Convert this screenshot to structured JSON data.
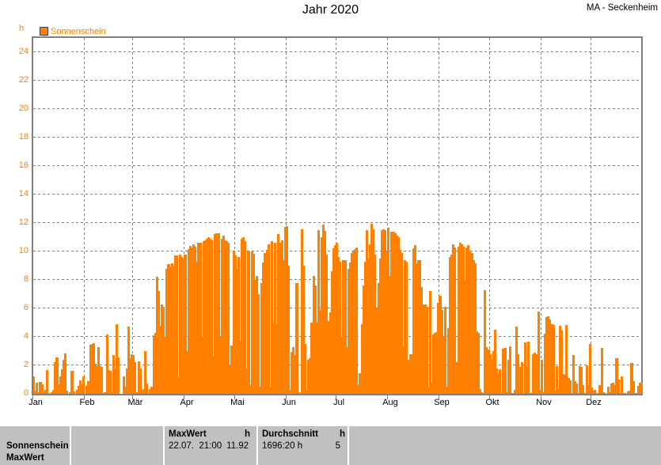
{
  "header": {
    "title": "Jahr 2020",
    "station": "MA - Seckenheim"
  },
  "legend": {
    "unit": "h",
    "series_label": "Sonnenschein"
  },
  "chart_data": {
    "type": "bar",
    "title": "Jahr 2020",
    "ylabel": "h",
    "ylim": [
      0,
      25
    ],
    "yticks": [
      0,
      2,
      4,
      6,
      8,
      10,
      12,
      14,
      16,
      18,
      20,
      22,
      24
    ],
    "x_months": [
      "Jan",
      "Feb",
      "Mär",
      "Apr",
      "Mai",
      "Jun",
      "Jul",
      "Aug",
      "Sep",
      "Okt",
      "Nov",
      "Dez"
    ],
    "month_days": [
      31,
      29,
      31,
      30,
      31,
      30,
      31,
      31,
      30,
      31,
      30,
      31
    ],
    "grid": "dashed",
    "legend_position": "top-left",
    "series": [
      {
        "name": "Sonnenschein",
        "unit": "h",
        "color": "#FF8000",
        "values": [
          1.2,
          0.2,
          0.8,
          0.1,
          0.85,
          0.65,
          0.1,
          0.25,
          1.65,
          0.05,
          0,
          0.1,
          0.3,
          2.2,
          2.55,
          0.65,
          1.2,
          1.7,
          2.4,
          2.85,
          0.2,
          0,
          0.1,
          1.6,
          0.15,
          0,
          0.3,
          0.55,
          0.95,
          0.65,
          1.2,
          0,
          0.55,
          0.9,
          3.45,
          3.5,
          3.55,
          2.1,
          1.95,
          3.3,
          1.95,
          1.9,
          0.05,
          0.1,
          4.15,
          1.65,
          1.6,
          0.1,
          2.7,
          1.8,
          4.9,
          2.55,
          0,
          0,
          1.2,
          0.5,
          1.75,
          4.7,
          2.5,
          2.75,
          2.7,
          2.2,
          0.1,
          2.3,
          1.8,
          0.3,
          0.35,
          3.0,
          0.7,
          0.05,
          0.35,
          0.5,
          4.1,
          4.3,
          8.2,
          7.2,
          4.8,
          6.3,
          6.1,
          4.0,
          8.8,
          9.1,
          8.9,
          9.15,
          9.0,
          9.7,
          9.7,
          1.15,
          9.8,
          9.6,
          9.5,
          9.8,
          3.0,
          10.15,
          10.4,
          10.25,
          10.5,
          10.35,
          9.3,
          10.6,
          10.6,
          4.0,
          10.7,
          10.8,
          10.9,
          11.0,
          10.9,
          10.8,
          2.6,
          11.2,
          11.3,
          11.25,
          4.0,
          10.9,
          11.1,
          10.8,
          10.7,
          10.6,
          2.0,
          3.4,
          10.0,
          9.7,
          8.8,
          9.6,
          3.7,
          10.9,
          11.0,
          10.7,
          1.8,
          10.0,
          0.6,
          10.0,
          9.85,
          8.0,
          8.3,
          7.0,
          0.5,
          7.8,
          9.2,
          9.9,
          10.1,
          10.5,
          0.5,
          10.7,
          5.0,
          10.6,
          4.9,
          11.2,
          10.6,
          10.8,
          9.4,
          11.7,
          11.8,
          9.0,
          0.3,
          2.95,
          3.3,
          2.7,
          7.8,
          0.1,
          0.05,
          11.55,
          9.0,
          3.5,
          0.2,
          2.4,
          2.5,
          5.0,
          8.3,
          7.6,
          5.0,
          11.5,
          5.9,
          11.0,
          11.9,
          11.45,
          9.8,
          5.1,
          5.7,
          8.6,
          10.2,
          10.45,
          10.6,
          9.6,
          9.3,
          4.0,
          9.4,
          9.4,
          3.3,
          8.8,
          9.2,
          9.9,
          10.0,
          10.15,
          10.3,
          0.6,
          1.45,
          4.9,
          7.6,
          9.25,
          11.5,
          9.5,
          10.5,
          11.92,
          11.55,
          9.8,
          6.0,
          7.8,
          9.5,
          11.5,
          11.55,
          11.5,
          10.0,
          11.65,
          8.3,
          11.4,
          11.4,
          11.3,
          11.1,
          11.0,
          10.1,
          9.9,
          3.3,
          9.4,
          9.3,
          2.4,
          2.8,
          2.8,
          10.2,
          10.45,
          9.15,
          9.4,
          9.4,
          7.5,
          6.3,
          6.3,
          6.1,
          0.45,
          7.2,
          0.75,
          4.15,
          4.3,
          4.35,
          6.4,
          6.9,
          5.9,
          4.0,
          6.1,
          0.5,
          4.6,
          9.6,
          9.8,
          10.5,
          10.25,
          2.2,
          10.35,
          10.6,
          10.5,
          10.35,
          8.0,
          10.25,
          10.45,
          10.0,
          9.9,
          9.4,
          9.15,
          4.4,
          4.3,
          0.35,
          0.1,
          0.05,
          7.3,
          3.3,
          3.1,
          2.75,
          2.4,
          3.0,
          4.5,
          1.8,
          1.4,
          1.7,
          0.05,
          3.15,
          3.2,
          0.1,
          2.4,
          3.35,
          0.05,
          0.05,
          0.25,
          4.7,
          2.75,
          1.9,
          2.2,
          0.05,
          3.6,
          1.9,
          3.65,
          0.05,
          0.05,
          2.8,
          2.9,
          2.8,
          5.8,
          0.3,
          2.4,
          0.1,
          4.2,
          5.4,
          5.45,
          5.2,
          4.9,
          4.85,
          0.15,
          1.95,
          0.35,
          4.8,
          4.45,
          1.4,
          1.35,
          4.85,
          1.1,
          0.95,
          0.05,
          2.7,
          0.9,
          0.7,
          0.05,
          1.95,
          1.9,
          0.6,
          0.05,
          2.0,
          0.6,
          3.5,
          0.45,
          0.2,
          0.25,
          0.05,
          0.05,
          0.6,
          3.2,
          0.1,
          0.05,
          0,
          0.5,
          0.1,
          0.7,
          0.75,
          0.6,
          2.5,
          1.0,
          0.05,
          1.2,
          0.05,
          0.05,
          0,
          0.15,
          0.2,
          2.15,
          0.9,
          0.05,
          0.05,
          0.55,
          0.8,
          0.85
        ]
      }
    ]
  },
  "colors": {
    "bar": "#FF8000",
    "axis_text": "#FF8000",
    "frame": "#808080",
    "grid": "#808080",
    "table_bg": "#C0C0C0",
    "text": "#000000"
  },
  "table": {
    "row1_label": "Sonnenschein",
    "row2_label": "MaxWert",
    "maxwert": {
      "header": "MaxWert",
      "header_unit": "h",
      "datetime": "22.07.  21:00",
      "value": "11.92"
    },
    "durchschnitt": {
      "header": "Durchschnitt",
      "header_unit": "h",
      "sum": "1696:20 h",
      "value": "5"
    }
  }
}
